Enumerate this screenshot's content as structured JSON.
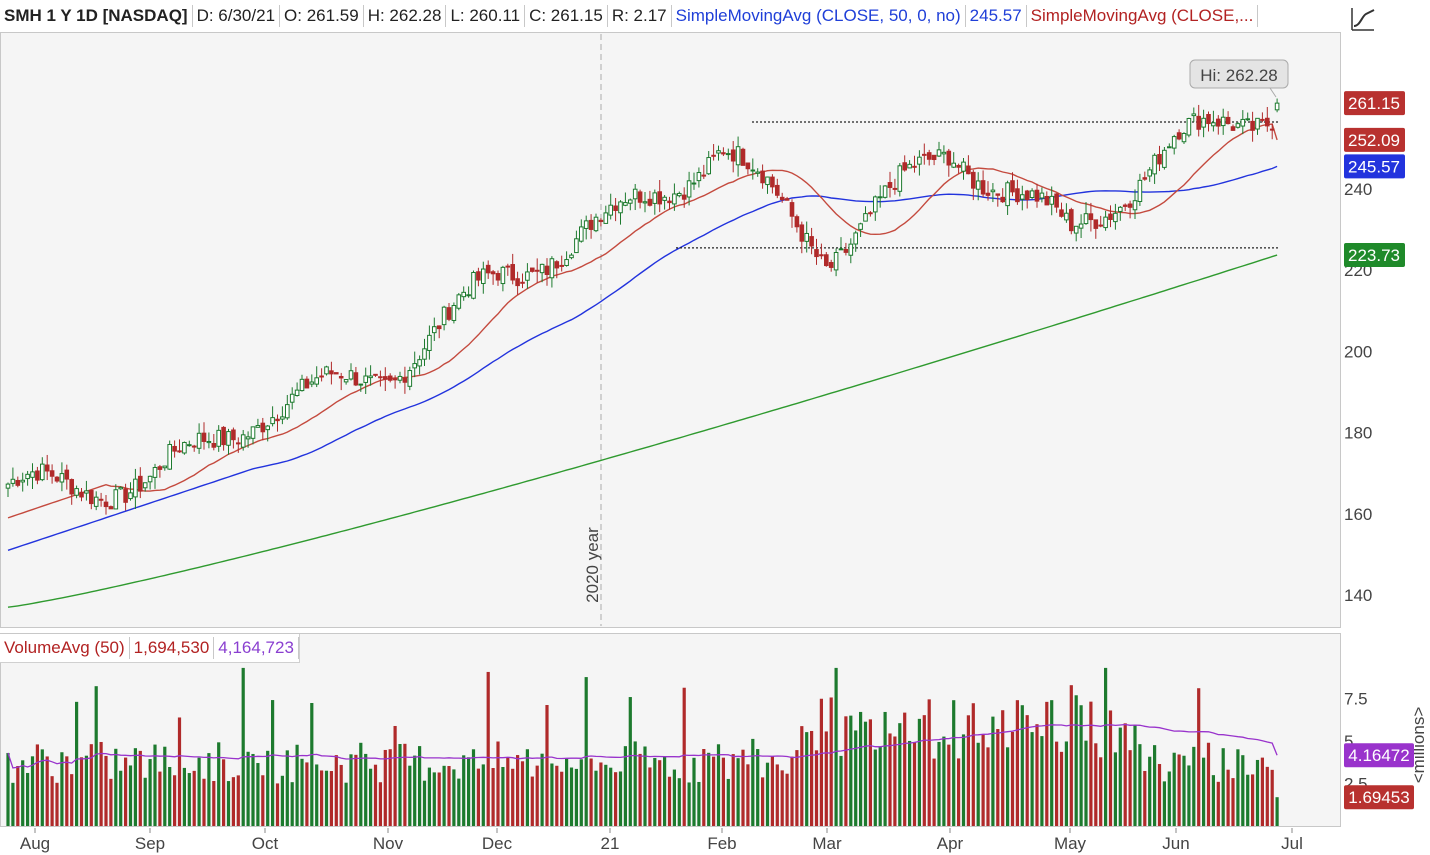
{
  "header": {
    "symbol": "SMH 1 Y 1D [NASDAQ]",
    "date": "D: 6/30/21",
    "open": "O: 261.59",
    "high": "H: 262.28",
    "low": "L: 260.11",
    "close": "C: 261.15",
    "range": "R: 2.17",
    "sma50_label": "SimpleMovingAvg (CLOSE, 50, 0, no)",
    "sma50_value": "245.57",
    "sma20_label": "SimpleMovingAvg (CLOSE,..."
  },
  "volume_header": {
    "label": "VolumeAvg (50)",
    "volume": "1,694,530",
    "avg": "4,164,723"
  },
  "hi_label": "Hi: 262.28",
  "year_marker": "2020 year",
  "volume_axis_unit": "<millions>",
  "colors": {
    "up": "#1d7a2e",
    "down": "#b02a2a",
    "sma20": "#c44a3e",
    "sma50": "#2233dd",
    "sma200": "#2f9a2f",
    "vol_avg": "#9933cc"
  },
  "chart_data": {
    "type": "candlestick",
    "price_ylim": [
      132,
      270
    ],
    "price_ticks": [
      "140",
      "160",
      "180",
      "200",
      "220",
      "240"
    ],
    "volume_ylim": [
      0,
      10
    ],
    "volume_ticks": [
      "2.5",
      "5",
      "7.5"
    ],
    "x_labels": [
      "Aug",
      "Sep",
      "Oct",
      "Nov",
      "Dec",
      "21",
      "Feb",
      "Mar",
      "Apr",
      "May",
      "Jun",
      "Jul"
    ],
    "last_price": "261.15",
    "sma20_last": "252.09",
    "sma50_last": "245.57",
    "sma200_last": "223.73",
    "vol_avg_last": "4.16472",
    "vol_last": "1.69453",
    "resistance": 256.5,
    "support": 225.5,
    "monthly_points": [
      {
        "month": "Aug",
        "price": 166
      },
      {
        "month": "Sep",
        "price": 168
      },
      {
        "month": "Oct",
        "price": 186
      },
      {
        "month": "Nov",
        "price": 195
      },
      {
        "month": "Dec",
        "price": 218
      },
      {
        "month": "21",
        "price": 232
      },
      {
        "month": "Feb",
        "price": 250
      },
      {
        "month": "Mar",
        "price": 224
      },
      {
        "month": "Apr",
        "price": 250
      },
      {
        "month": "May",
        "price": 229
      },
      {
        "month": "Jun",
        "price": 251
      },
      {
        "month": "Jun end",
        "price": 261
      }
    ]
  }
}
